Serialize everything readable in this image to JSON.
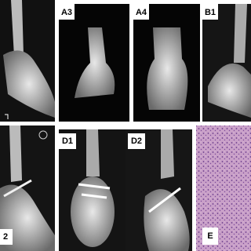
{
  "panels": [
    {
      "label": "A3"
    },
    {
      "label": "A4"
    },
    {
      "label": "B1"
    },
    {
      "label": "2"
    },
    {
      "label": "D1"
    },
    {
      "label": "D2"
    },
    {
      "label": "E"
    }
  ]
}
